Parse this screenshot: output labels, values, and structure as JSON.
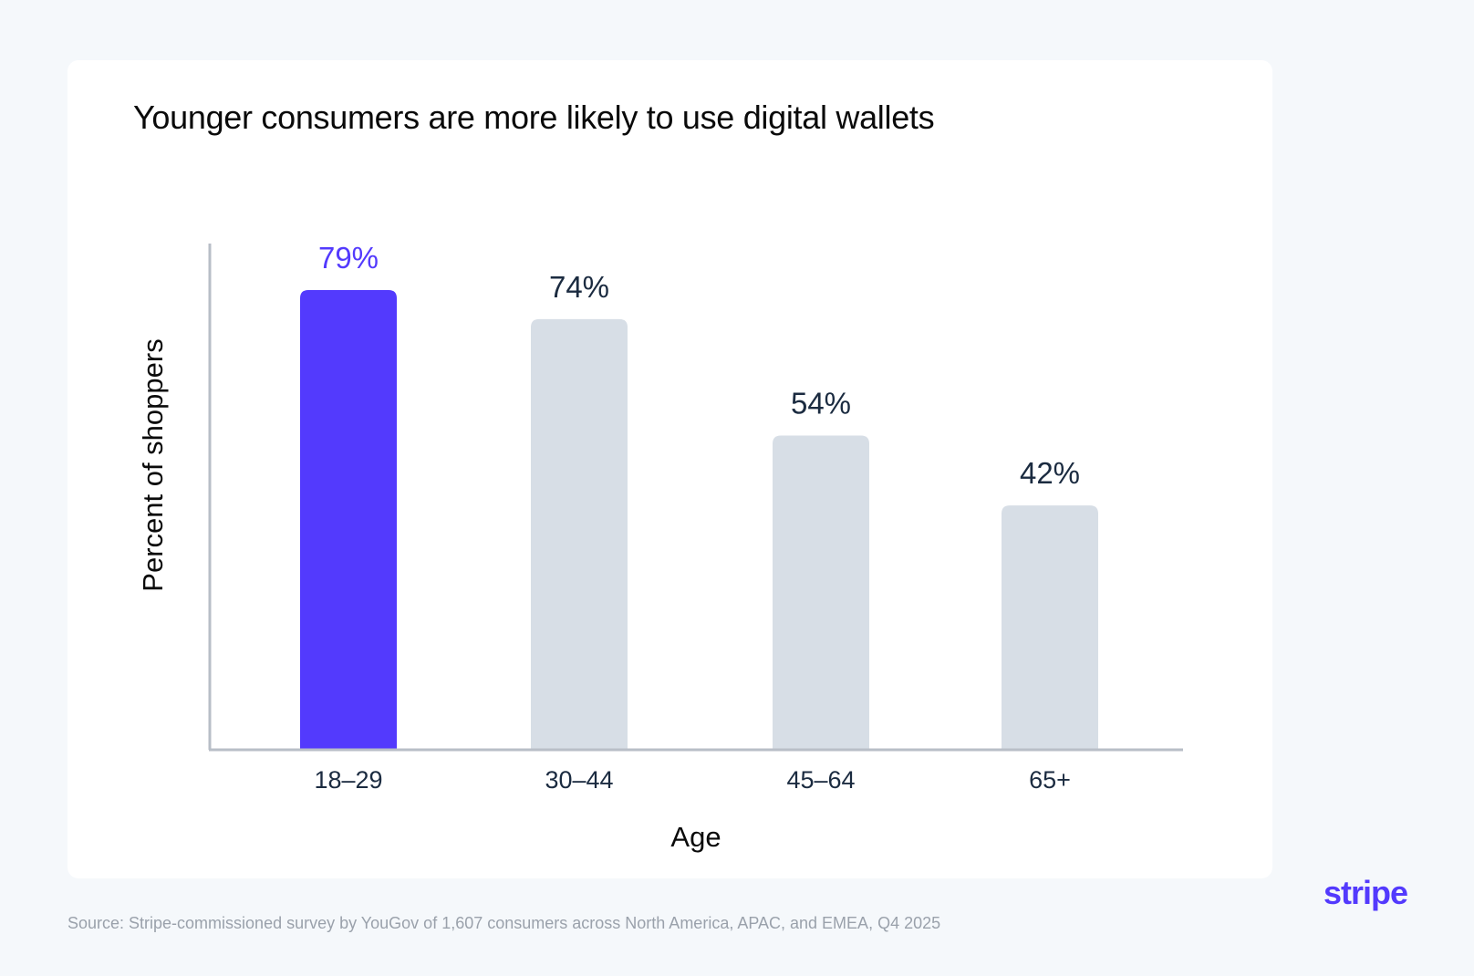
{
  "colors": {
    "background": "#f5f8fb",
    "card": "#ffffff",
    "highlight_bar": "#533afd",
    "default_bar": "#d7dee6",
    "highlight_label": "#533afd",
    "default_label": "#1b2b40",
    "axis": "#b8bec7",
    "brand": "#533afd"
  },
  "brand": {
    "logo_text": "stripe"
  },
  "footer": {
    "source": "Source: Stripe-commissioned survey by YouGov of 1,607 consumers across North America, APAC, and EMEA, Q4 2025"
  },
  "chart_data": {
    "type": "bar",
    "title": "Younger consumers are more likely to use digital wallets",
    "xlabel": "Age",
    "ylabel": "Percent of shoppers",
    "categories": [
      "18–29",
      "30–44",
      "45–64",
      "65+"
    ],
    "values": [
      79,
      74,
      54,
      42
    ],
    "data_labels": [
      "79%",
      "74%",
      "54%",
      "42%"
    ],
    "highlighted_index": 0,
    "ylim": [
      0,
      87
    ],
    "grid": false,
    "legend": "none"
  }
}
